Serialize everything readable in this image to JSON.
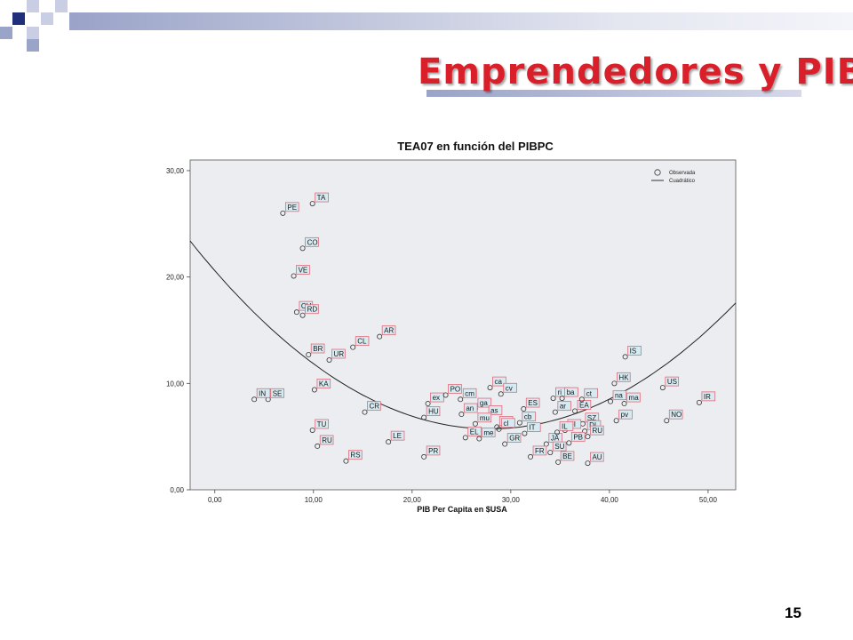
{
  "slide": {
    "title": "Emprendedores y PIB",
    "page_number": "15",
    "colors": {
      "title": "#d9202a",
      "accent_square": "#1f2f7a",
      "accent_light": "#9aa3c8",
      "plot_bg": "#ecedf0"
    }
  },
  "chart_data": {
    "type": "scatter",
    "title": "TEA07 en función del PIBPC",
    "xlabel": "PIB Per Capita en $USA",
    "ylabel": "",
    "xlim": [
      -2.5,
      52.8
    ],
    "ylim": [
      0,
      31
    ],
    "x_ticks": [
      {
        "v": 0,
        "label": "0,00"
      },
      {
        "v": 10,
        "label": "10,00"
      },
      {
        "v": 20,
        "label": "20,00"
      },
      {
        "v": 30,
        "label": "30,00"
      },
      {
        "v": 40,
        "label": "40,00"
      },
      {
        "v": 50,
        "label": "50,00"
      }
    ],
    "y_ticks": [
      {
        "v": 0,
        "label": "0,00"
      },
      {
        "v": 10,
        "label": "10,00"
      },
      {
        "v": 20,
        "label": "20,00"
      },
      {
        "v": 30,
        "label": "30,00"
      }
    ],
    "legend": {
      "position": "top-right",
      "entries": [
        "Observada",
        "Cuadrático"
      ]
    },
    "fit": {
      "type": "quadratic",
      "a": 20.6,
      "b": -1.066,
      "c": 0.0191
    },
    "points": [
      {
        "label": "TA",
        "x": 9.9,
        "y": 26.9
      },
      {
        "label": "PE",
        "x": 6.9,
        "y": 26.0
      },
      {
        "label": "CO",
        "x": 8.9,
        "y": 22.7
      },
      {
        "label": "VE",
        "x": 8.0,
        "y": 20.1
      },
      {
        "label": "CH",
        "x": 8.3,
        "y": 16.7
      },
      {
        "label": "RD",
        "x": 8.9,
        "y": 16.4
      },
      {
        "label": "AR",
        "x": 16.7,
        "y": 14.4
      },
      {
        "label": "CL",
        "x": 14.0,
        "y": 13.4
      },
      {
        "label": "BR",
        "x": 9.5,
        "y": 12.7
      },
      {
        "label": "UR",
        "x": 11.6,
        "y": 12.2
      },
      {
        "label": "IS",
        "x": 41.6,
        "y": 12.5
      },
      {
        "label": "HK",
        "x": 40.5,
        "y": 10.0
      },
      {
        "label": "US",
        "x": 45.4,
        "y": 9.6
      },
      {
        "label": "KA",
        "x": 10.1,
        "y": 9.4
      },
      {
        "label": "SE",
        "x": 5.4,
        "y": 8.5
      },
      {
        "label": "IN",
        "x": 4.0,
        "y": 8.5
      },
      {
        "label": "CR",
        "x": 15.2,
        "y": 7.3
      },
      {
        "label": "IR",
        "x": 49.1,
        "y": 8.2
      },
      {
        "label": "NO",
        "x": 45.8,
        "y": 6.5
      },
      {
        "label": "TU",
        "x": 9.9,
        "y": 5.6
      },
      {
        "label": "RU",
        "x": 10.4,
        "y": 4.1
      },
      {
        "label": "LE",
        "x": 17.6,
        "y": 4.5
      },
      {
        "label": "RS",
        "x": 13.3,
        "y": 2.7
      },
      {
        "label": "PR",
        "x": 21.2,
        "y": 3.1
      },
      {
        "label": "ex",
        "x": 21.6,
        "y": 8.1
      },
      {
        "label": "HU",
        "x": 21.2,
        "y": 6.8
      },
      {
        "label": "PO",
        "x": 23.4,
        "y": 8.9
      },
      {
        "label": "cm",
        "x": 24.9,
        "y": 8.5
      },
      {
        "label": "ca",
        "x": 27.9,
        "y": 9.6
      },
      {
        "label": "cv",
        "x": 29.0,
        "y": 9.0
      },
      {
        "label": "ga",
        "x": 26.4,
        "y": 7.6
      },
      {
        "label": "as",
        "x": 27.5,
        "y": 6.9
      },
      {
        "label": "an",
        "x": 25.0,
        "y": 7.1
      },
      {
        "label": "mu",
        "x": 26.4,
        "y": 6.2
      },
      {
        "label": "ce",
        "x": 28.6,
        "y": 5.9
      },
      {
        "label": "EL",
        "x": 25.4,
        "y": 4.9
      },
      {
        "label": "me",
        "x": 26.8,
        "y": 4.8
      },
      {
        "label": "GR",
        "x": 29.4,
        "y": 4.3
      },
      {
        "label": "ES",
        "x": 31.3,
        "y": 7.6
      },
      {
        "label": "cb",
        "x": 30.9,
        "y": 6.3
      },
      {
        "label": "cl",
        "x": 28.8,
        "y": 5.7
      },
      {
        "label": "IT",
        "x": 31.4,
        "y": 5.3
      },
      {
        "label": "JA",
        "x": 33.6,
        "y": 4.3
      },
      {
        "label": "SU",
        "x": 34.0,
        "y": 3.5
      },
      {
        "label": "FR",
        "x": 32.0,
        "y": 3.1
      },
      {
        "label": "BE",
        "x": 34.8,
        "y": 2.6
      },
      {
        "label": "ri",
        "x": 34.3,
        "y": 8.6
      },
      {
        "label": "ba",
        "x": 35.2,
        "y": 8.6
      },
      {
        "label": "ar",
        "x": 34.5,
        "y": 7.3
      },
      {
        "label": "EA",
        "x": 36.5,
        "y": 7.4
      },
      {
        "label": "ct",
        "x": 37.2,
        "y": 8.5
      },
      {
        "label": "SZ",
        "x": 37.3,
        "y": 6.2
      },
      {
        "label": "FI",
        "x": 35.5,
        "y": 5.6
      },
      {
        "label": "DI",
        "x": 37.5,
        "y": 5.5
      },
      {
        "label": "IL",
        "x": 34.7,
        "y": 5.4
      },
      {
        "label": "RU",
        "x": 37.8,
        "y": 5.0
      },
      {
        "label": "PB",
        "x": 35.9,
        "y": 4.4
      },
      {
        "label": "AU",
        "x": 37.8,
        "y": 2.5
      },
      {
        "label": "na",
        "x": 40.1,
        "y": 8.3
      },
      {
        "label": "ma",
        "x": 41.5,
        "y": 8.1
      },
      {
        "label": "pv",
        "x": 40.7,
        "y": 6.5
      }
    ]
  }
}
